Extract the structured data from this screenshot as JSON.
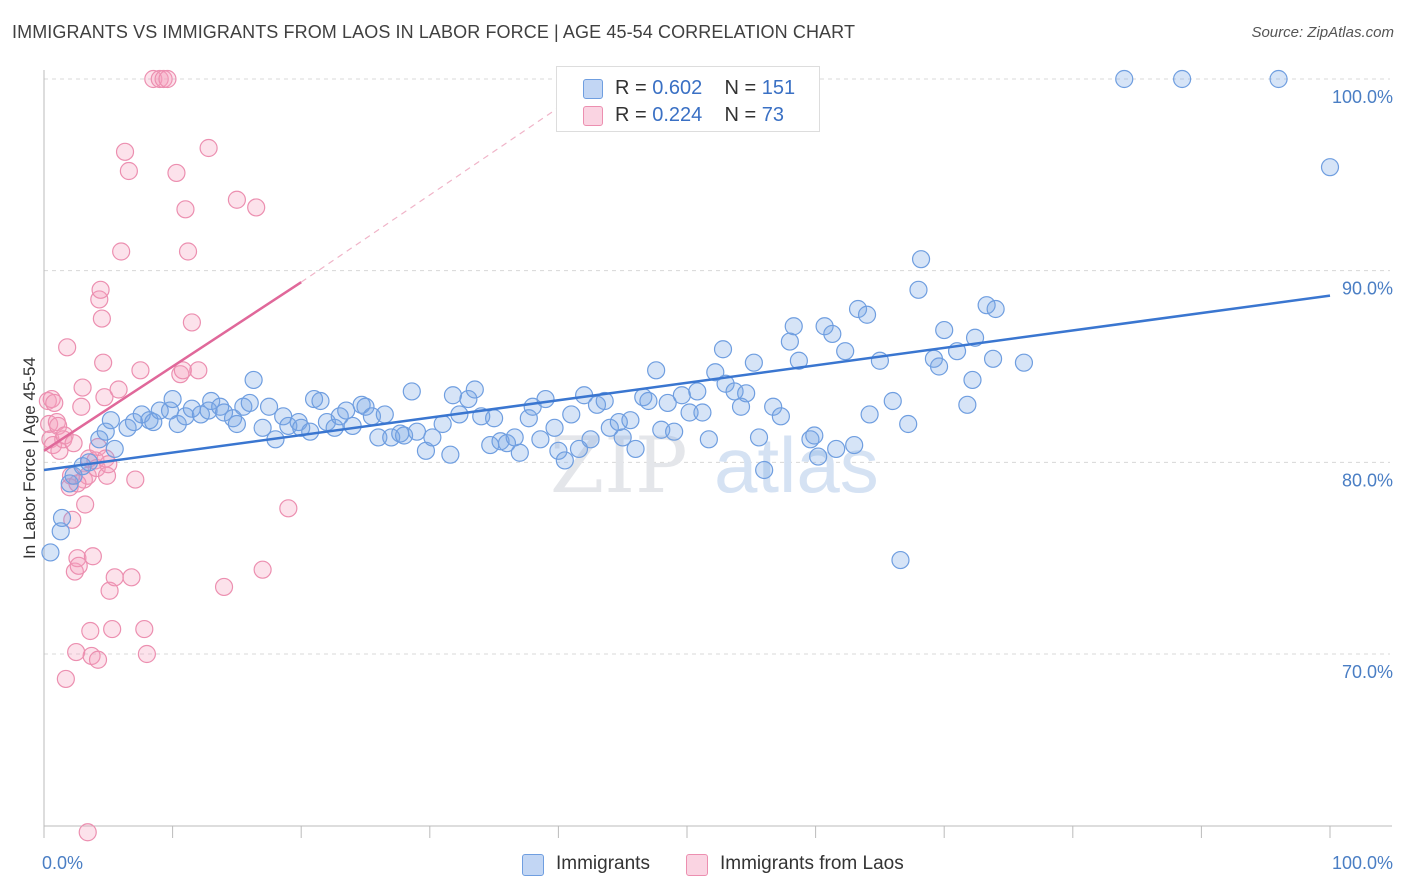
{
  "title": "IMMIGRANTS VS IMMIGRANTS FROM LAOS IN LABOR FORCE | AGE 45-54 CORRELATION CHART",
  "source": "Source: ZipAtlas.com",
  "watermark": {
    "zip": "ZIP",
    "atlas": "atlas"
  },
  "colors": {
    "blue": "#3a76d0",
    "blue_fill": "rgba(120,165,230,0.30)",
    "blue_edge": "#6f9ee0",
    "pink": "#e0689a",
    "pink_fill": "rgba(245,160,190,0.30)",
    "pink_edge": "#ec8fb0",
    "grid": "#d8d8d8",
    "tick_text": "#4a7ec4"
  },
  "legend": [
    {
      "r_label": "R = ",
      "r_value": "0.602",
      "n_label": "N = ",
      "n_value": "151",
      "series": "blue"
    },
    {
      "r_label": "R = ",
      "r_value": "0.224",
      "n_label": "N = ",
      "n_value": "73",
      "series": "pink"
    }
  ],
  "chart_data": {
    "type": "scatter",
    "title": "IMMIGRANTS VS IMMIGRANTS FROM LAOS IN LABOR FORCE | AGE 45-54 CORRELATION CHART",
    "xlabel": "",
    "ylabel": "In Labor Force | Age 45-54",
    "xlim": [
      0,
      100
    ],
    "ylim": [
      60.5,
      101.5
    ],
    "x_tick_labels": [
      "0.0%",
      "100.0%"
    ],
    "y_ticks": [
      70,
      80,
      90,
      100
    ],
    "y_tick_labels": [
      "70.0%",
      "80.0%",
      "90.0%",
      "100.0%"
    ],
    "grid": "horizontal dashed",
    "legend_placement": "top-center",
    "series": [
      {
        "name": "Immigrants",
        "color": "blue",
        "trend": {
          "x0": 0,
          "y0": 79.6,
          "x1": 100,
          "y1": 88.7,
          "dashed_extension": false
        },
        "points": [
          [
            0.5,
            75.3
          ],
          [
            1.3,
            76.4
          ],
          [
            1.4,
            77.1
          ],
          [
            2,
            78.9
          ],
          [
            2.3,
            79.3
          ],
          [
            3,
            79.8
          ],
          [
            3.5,
            80
          ],
          [
            4.3,
            81.2
          ],
          [
            4.8,
            81.6
          ],
          [
            5.2,
            82.2
          ],
          [
            5.5,
            80.7
          ],
          [
            6.5,
            81.8
          ],
          [
            7,
            82.1
          ],
          [
            7.6,
            82.5
          ],
          [
            8.2,
            82.2
          ],
          [
            8.5,
            82.1
          ],
          [
            9,
            82.7
          ],
          [
            9.8,
            82.7
          ],
          [
            10,
            83.3
          ],
          [
            10.4,
            82
          ],
          [
            11,
            82.4
          ],
          [
            11.5,
            82.8
          ],
          [
            12.2,
            82.5
          ],
          [
            12.8,
            82.7
          ],
          [
            13,
            83.2
          ],
          [
            13.7,
            82.9
          ],
          [
            14,
            82.6
          ],
          [
            14.7,
            82.3
          ],
          [
            15,
            82
          ],
          [
            15.5,
            82.9
          ],
          [
            16,
            83.1
          ],
          [
            16.3,
            84.3
          ],
          [
            17,
            81.8
          ],
          [
            17.5,
            82.9
          ],
          [
            18,
            81.2
          ],
          [
            18.6,
            82.4
          ],
          [
            19,
            81.9
          ],
          [
            19.8,
            82.1
          ],
          [
            20,
            81.8
          ],
          [
            20.7,
            81.6
          ],
          [
            21,
            83.3
          ],
          [
            21.5,
            83.2
          ],
          [
            22,
            82.1
          ],
          [
            22.6,
            81.8
          ],
          [
            23,
            82.4
          ],
          [
            23.5,
            82.7
          ],
          [
            24,
            81.9
          ],
          [
            24.7,
            83
          ],
          [
            25,
            82.9
          ],
          [
            25.5,
            82.4
          ],
          [
            26,
            81.3
          ],
          [
            26.5,
            82.5
          ],
          [
            27,
            81.3
          ],
          [
            27.7,
            81.5
          ],
          [
            28,
            81.4
          ],
          [
            28.6,
            83.7
          ],
          [
            29,
            81.6
          ],
          [
            29.7,
            80.6
          ],
          [
            30.2,
            81.3
          ],
          [
            31,
            82
          ],
          [
            31.6,
            80.4
          ],
          [
            31.8,
            83.5
          ],
          [
            32.3,
            82.5
          ],
          [
            33,
            83.3
          ],
          [
            33.5,
            83.8
          ],
          [
            34,
            82.4
          ],
          [
            34.7,
            80.9
          ],
          [
            35,
            82.3
          ],
          [
            35.5,
            81.1
          ],
          [
            36,
            81
          ],
          [
            36.6,
            81.3
          ],
          [
            37,
            80.5
          ],
          [
            37.7,
            82.3
          ],
          [
            38,
            82.9
          ],
          [
            38.6,
            81.2
          ],
          [
            39,
            83.3
          ],
          [
            39.7,
            81.8
          ],
          [
            40,
            80.6
          ],
          [
            40.5,
            80.1
          ],
          [
            41,
            82.5
          ],
          [
            41.6,
            80.7
          ],
          [
            42,
            83.5
          ],
          [
            42.5,
            81.2
          ],
          [
            43,
            83
          ],
          [
            43.6,
            83.2
          ],
          [
            44,
            81.8
          ],
          [
            44.7,
            82.1
          ],
          [
            45,
            81.3
          ],
          [
            45.6,
            82.2
          ],
          [
            46,
            80.7
          ],
          [
            46.6,
            83.4
          ],
          [
            47,
            83.2
          ],
          [
            47.6,
            84.8
          ],
          [
            48,
            81.7
          ],
          [
            48.5,
            83.1
          ],
          [
            49,
            81.6
          ],
          [
            49.6,
            83.5
          ],
          [
            50.2,
            82.6
          ],
          [
            50.8,
            83.7
          ],
          [
            51.2,
            82.6
          ],
          [
            51.7,
            81.2
          ],
          [
            52.2,
            84.7
          ],
          [
            52.8,
            85.9
          ],
          [
            53,
            84.1
          ],
          [
            53.7,
            83.7
          ],
          [
            54.2,
            82.9
          ],
          [
            54.6,
            83.6
          ],
          [
            55.2,
            85.2
          ],
          [
            55.6,
            81.3
          ],
          [
            56,
            79.6
          ],
          [
            56.7,
            82.9
          ],
          [
            57.3,
            82.4
          ],
          [
            58,
            86.3
          ],
          [
            58.3,
            87.1
          ],
          [
            58.7,
            85.3
          ],
          [
            59.6,
            81.2
          ],
          [
            59.9,
            81.4
          ],
          [
            60.2,
            80.3
          ],
          [
            60.7,
            87.1
          ],
          [
            61.3,
            86.7
          ],
          [
            61.6,
            80.7
          ],
          [
            62.3,
            85.8
          ],
          [
            63,
            80.9
          ],
          [
            63.3,
            88
          ],
          [
            64,
            87.7
          ],
          [
            64.2,
            82.5
          ],
          [
            65,
            85.3
          ],
          [
            66,
            83.2
          ],
          [
            67.2,
            82
          ],
          [
            68,
            89
          ],
          [
            68.2,
            90.6
          ],
          [
            69.2,
            85.4
          ],
          [
            69.6,
            85
          ],
          [
            70,
            86.9
          ],
          [
            71,
            85.8
          ],
          [
            71.8,
            83
          ],
          [
            72.2,
            84.3
          ],
          [
            72.4,
            86.5
          ],
          [
            73.3,
            88.2
          ],
          [
            73.8,
            85.4
          ],
          [
            74,
            88
          ],
          [
            76.2,
            85.2
          ],
          [
            66.6,
            74.9
          ],
          [
            84,
            100
          ],
          [
            88.5,
            100
          ],
          [
            96,
            100
          ],
          [
            100,
            95.4
          ]
        ]
      },
      {
        "name": "Immigrants from Laos",
        "color": "pink",
        "trend": {
          "x0": 0,
          "y0": 80.6,
          "x1": 20,
          "y1": 89.4,
          "dashed_to": {
            "x": 40,
            "y": 98.5
          }
        },
        "points": [
          [
            0.3,
            83.2
          ],
          [
            0.4,
            82
          ],
          [
            0.5,
            81.2
          ],
          [
            0.6,
            83.3
          ],
          [
            0.7,
            80.9
          ],
          [
            0.8,
            83.1
          ],
          [
            1,
            82.1
          ],
          [
            1.1,
            81.9
          ],
          [
            1.2,
            80.6
          ],
          [
            1.5,
            81.2
          ],
          [
            1.6,
            81.4
          ],
          [
            1.8,
            86
          ],
          [
            2,
            78.7
          ],
          [
            2.1,
            79.3
          ],
          [
            2.2,
            77
          ],
          [
            2.3,
            81
          ],
          [
            2.4,
            74.3
          ],
          [
            2.6,
            75
          ],
          [
            2.7,
            74.6
          ],
          [
            2.9,
            82.9
          ],
          [
            3,
            83.9
          ],
          [
            3.1,
            79.1
          ],
          [
            3.2,
            77.8
          ],
          [
            3.4,
            79.3
          ],
          [
            3.5,
            80.2
          ],
          [
            3.6,
            71.2
          ],
          [
            3.7,
            69.9
          ],
          [
            3.8,
            75.1
          ],
          [
            4,
            80.1
          ],
          [
            4.1,
            79.7
          ],
          [
            4.2,
            80.8
          ],
          [
            4.3,
            88.5
          ],
          [
            4.4,
            89
          ],
          [
            4.5,
            87.5
          ],
          [
            4.6,
            85.2
          ],
          [
            4.7,
            83.4
          ],
          [
            4.8,
            80.2
          ],
          [
            4.9,
            79.3
          ],
          [
            5,
            79.9
          ],
          [
            5.1,
            73.3
          ],
          [
            5.3,
            71.3
          ],
          [
            5.5,
            74
          ],
          [
            5.8,
            83.8
          ],
          [
            6,
            91
          ],
          [
            6.3,
            96.2
          ],
          [
            6.6,
            95.2
          ],
          [
            6.8,
            74
          ],
          [
            7.1,
            79.1
          ],
          [
            7.5,
            84.8
          ],
          [
            7.8,
            71.3
          ],
          [
            8,
            70
          ],
          [
            8.5,
            100
          ],
          [
            9,
            100
          ],
          [
            9.3,
            100
          ],
          [
            9.6,
            100
          ],
          [
            10.3,
            95.1
          ],
          [
            10.6,
            84.6
          ],
          [
            10.8,
            84.8
          ],
          [
            11,
            93.2
          ],
          [
            11.2,
            91
          ],
          [
            11.5,
            87.3
          ],
          [
            12,
            84.8
          ],
          [
            12.8,
            96.4
          ],
          [
            14,
            73.5
          ],
          [
            15,
            93.7
          ],
          [
            16.5,
            93.3
          ],
          [
            17,
            74.4
          ],
          [
            19,
            77.6
          ],
          [
            2.6,
            78.9
          ],
          [
            4.2,
            69.7
          ],
          [
            2.5,
            70.1
          ],
          [
            3.4,
            60.7
          ],
          [
            1.7,
            68.7
          ]
        ]
      }
    ]
  },
  "bottom_legend": [
    {
      "label": "Immigrants",
      "series": "blue"
    },
    {
      "label": "Immigrants from Laos",
      "series": "pink"
    }
  ]
}
